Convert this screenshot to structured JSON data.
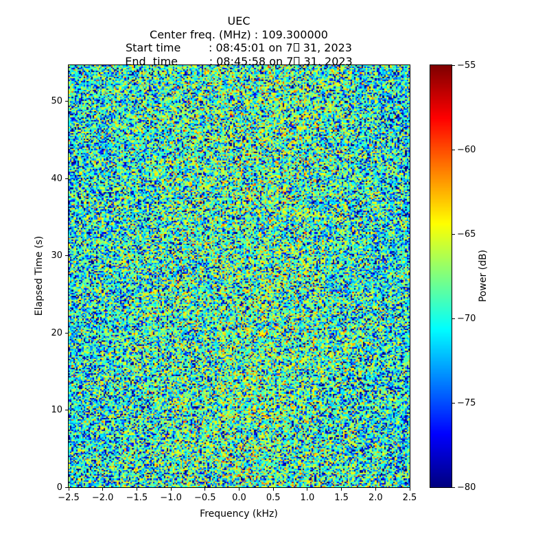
{
  "header": {
    "title": "UEC",
    "center_freq_line": "Center freq. (MHz) : 109.300000",
    "start_line": {
      "pre": "Start time        : 08:45:01 on 7",
      "post": " 31, 2023"
    },
    "end_line": {
      "pre": "End  time         : 08:45:58 on 7",
      "post": " 31, 2023"
    },
    "missing_glyph_note": "tofu-box (unrenderable month character)"
  },
  "chart_data": {
    "type": "heatmap",
    "variant": "spectrogram-waterfall",
    "title": "UEC",
    "subtitle_lines": [
      "Center freq. (MHz) : 109.300000",
      "Start time        : 08:45:01 on 7□ 31, 2023",
      "End  time         : 08:45:58 on 7□ 31, 2023"
    ],
    "xlabel": "Frequency (kHz)",
    "ylabel": "Elapsed Time (s)",
    "xlim": [
      -2.5,
      2.5
    ],
    "ylim": [
      0,
      54.7
    ],
    "xticks": [
      -2.5,
      -2.0,
      -1.5,
      -1.0,
      -0.5,
      0.0,
      0.5,
      1.0,
      1.5,
      2.0,
      2.5
    ],
    "xtick_labels": [
      "−2.5",
      "−2.0",
      "−1.5",
      "−1.0",
      "−0.5",
      "0.0",
      "0.5",
      "1.0",
      "1.5",
      "2.0",
      "2.5"
    ],
    "yticks": [
      0,
      10,
      20,
      30,
      40,
      50
    ],
    "ytick_labels": [
      "0",
      "10",
      "20",
      "30",
      "40",
      "50"
    ],
    "grid": false,
    "colorbar": {
      "label": "Power (dB)",
      "clim": [
        -80,
        -55
      ],
      "ticks": [
        -55,
        -60,
        -65,
        -70,
        -75,
        -80
      ],
      "tick_labels": [
        "−55",
        "−60",
        "−65",
        "−70",
        "−75",
        "−80"
      ],
      "colormap": "jet",
      "colormap_stops": [
        "#000080",
        "#0000ff",
        "#00ffff",
        "#80ff80",
        "#ffff00",
        "#ff0000",
        "#800000"
      ],
      "position": "right"
    },
    "noise_model": {
      "description": "broadband random noise floor, no coherent signal",
      "distribution": "exponential-power (dB = base + 10*log10(Exp(1)))",
      "base_db_center": -67.0,
      "band_edge_rolloff_db": 2.0,
      "column_jitter_db": 0.7,
      "clip_db": [
        -80,
        -55
      ],
      "grid_cols": 226,
      "grid_rows": 293,
      "seed": 20230731
    },
    "colors": {
      "background": "#ffffff",
      "spine": "#000000",
      "text": "#000000"
    }
  }
}
